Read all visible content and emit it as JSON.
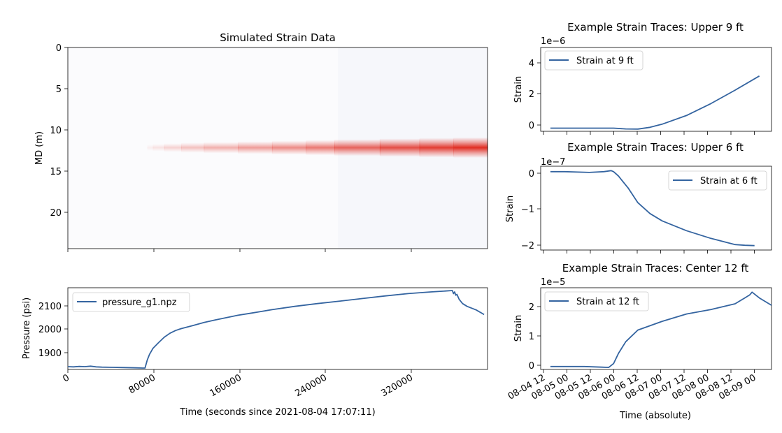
{
  "colors": {
    "line": "#3464a0",
    "heat_high": "#e0271c",
    "heat_low": "#fbfbfd"
  },
  "chart_data": [
    {
      "id": "heatmap",
      "type": "heatmap",
      "title": "Simulated Strain Data",
      "xlabel": "",
      "ylabel": "MD (m)",
      "xlim": [
        0,
        370000
      ],
      "ylim": [
        24.5,
        0
      ],
      "yticks": [
        0,
        5,
        10,
        15,
        20
      ],
      "xticks": [
        0,
        80000,
        160000,
        240000,
        320000
      ],
      "band_center_md": 12.2,
      "band_start_time": 70000,
      "light_background_from_time": 235000,
      "blocks": [
        {
          "x0": 70000,
          "x1": 75000,
          "intensity": 0.06
        },
        {
          "x0": 75000,
          "x1": 85000,
          "intensity": 0.12
        },
        {
          "x0": 85000,
          "x1": 100000,
          "intensity": 0.2
        },
        {
          "x0": 100000,
          "x1": 120000,
          "intensity": 0.28
        },
        {
          "x0": 120000,
          "x1": 150000,
          "intensity": 0.36
        },
        {
          "x0": 150000,
          "x1": 180000,
          "intensity": 0.45
        },
        {
          "x0": 180000,
          "x1": 210000,
          "intensity": 0.53
        },
        {
          "x0": 210000,
          "x1": 235000,
          "intensity": 0.62
        },
        {
          "x0": 235000,
          "x1": 275000,
          "intensity": 0.72
        },
        {
          "x0": 275000,
          "x1": 310000,
          "intensity": 0.82
        },
        {
          "x0": 310000,
          "x1": 340000,
          "intensity": 0.9
        },
        {
          "x0": 340000,
          "x1": 370000,
          "intensity": 0.97
        }
      ]
    },
    {
      "id": "pressure",
      "type": "line",
      "title": "",
      "xlabel": "Time (seconds since 2021-08-04 17:07:11)",
      "ylabel": "Pressure (psi)",
      "xlim": [
        0,
        370000
      ],
      "ylim": [
        1830,
        2180
      ],
      "xticks": [
        "0",
        "80000",
        "160000",
        "240000",
        "320000"
      ],
      "xtick_values": [
        0,
        80000,
        160000,
        240000,
        320000
      ],
      "yticks": [
        1900,
        2000,
        2100
      ],
      "legend_loc": "upper-left",
      "series": [
        {
          "name": "pressure_g1.npz",
          "x": [
            0,
            5000,
            10000,
            15000,
            20000,
            25000,
            30000,
            40000,
            50000,
            60000,
            66000,
            68000,
            70000,
            72000,
            75000,
            80000,
            85000,
            90000,
            95000,
            100000,
            110000,
            120000,
            130000,
            140000,
            150000,
            160000,
            170000,
            180000,
            200000,
            220000,
            240000,
            260000,
            280000,
            300000,
            320000,
            330000,
            339000,
            340000,
            341000,
            342000,
            343000,
            345000,
            348000,
            352000,
            360000,
            367000
          ],
          "y": [
            1842,
            1841,
            1843,
            1842,
            1844,
            1841,
            1840,
            1839,
            1838,
            1837,
            1836,
            1836,
            1870,
            1895,
            1920,
            1945,
            1968,
            1985,
            1997,
            2005,
            2018,
            2031,
            2042,
            2052,
            2062,
            2070,
            2078,
            2086,
            2100,
            2112,
            2123,
            2134,
            2145,
            2155,
            2162,
            2165,
            2168,
            2155,
            2162,
            2148,
            2152,
            2130,
            2112,
            2100,
            2085,
            2065
          ]
        }
      ]
    },
    {
      "id": "trace9",
      "type": "line",
      "title": "Example Strain Traces: Upper 9 ft",
      "xlabel": "",
      "ylabel": "Strain",
      "scale_label": "1e−6",
      "xlim": [
        0,
        4.75
      ],
      "ylim": [
        -0.2,
        5.1
      ],
      "yticks": [
        0,
        2,
        4
      ],
      "legend_loc": "upper-left",
      "series": [
        {
          "name": "Strain at 9 ft",
          "x": [
            0.2,
            0.5,
            1.0,
            1.5,
            1.75,
            2.0,
            2.25,
            2.5,
            3.0,
            3.5,
            4.0,
            4.5
          ],
          "y": [
            0,
            0,
            0,
            0,
            -0.05,
            -0.06,
            0.05,
            0.25,
            0.8,
            1.55,
            2.4,
            3.3
          ]
        }
      ]
    },
    {
      "id": "trace6",
      "type": "line",
      "title": "Example Strain Traces: Upper 6 ft",
      "xlabel": "",
      "ylabel": "Strain",
      "scale_label": "1e−7",
      "xlim": [
        0,
        4.75
      ],
      "ylim": [
        -2.15,
        0.15
      ],
      "yticks": [
        0,
        -1,
        -2
      ],
      "legend_loc": "upper-right",
      "series": [
        {
          "name": "Strain at 6 ft",
          "x": [
            0.2,
            0.5,
            1.0,
            1.3,
            1.45,
            1.5,
            1.6,
            1.8,
            2.0,
            2.25,
            2.5,
            3.0,
            3.5,
            4.0,
            4.2,
            4.4
          ],
          "y": [
            0,
            0,
            -0.02,
            0,
            0.03,
            0,
            -0.12,
            -0.45,
            -0.85,
            -1.15,
            -1.35,
            -1.62,
            -1.83,
            -2.0,
            -2.02,
            -2.03
          ]
        }
      ]
    },
    {
      "id": "trace12",
      "type": "line",
      "title": "Example Strain Traces: Center 12 ft",
      "xlabel": "Time (absolute)",
      "ylabel": "Strain",
      "scale_label": "1e−5",
      "xlim": [
        0,
        4.75
      ],
      "ylim": [
        -0.1,
        2.7
      ],
      "yticks": [
        0,
        1,
        2
      ],
      "xticks": [
        "08-04 12",
        "08-05 00",
        "08-05 12",
        "08-06 00",
        "08-06 12",
        "08-07 00",
        "08-07 12",
        "08-08 00",
        "08-08 12",
        "08-09 00"
      ],
      "legend_loc": "upper-left",
      "series": [
        {
          "name": "Strain at 12 ft",
          "x": [
            0.2,
            0.5,
            0.9,
            1.25,
            1.4,
            1.5,
            1.6,
            1.75,
            2.0,
            2.5,
            3.0,
            3.5,
            4.0,
            4.2,
            4.3,
            4.35,
            4.5,
            4.75
          ],
          "y": [
            0,
            0,
            0,
            -0.02,
            -0.03,
            0.1,
            0.45,
            0.85,
            1.25,
            1.55,
            1.8,
            1.95,
            2.15,
            2.35,
            2.45,
            2.55,
            2.35,
            2.1
          ]
        }
      ]
    }
  ]
}
